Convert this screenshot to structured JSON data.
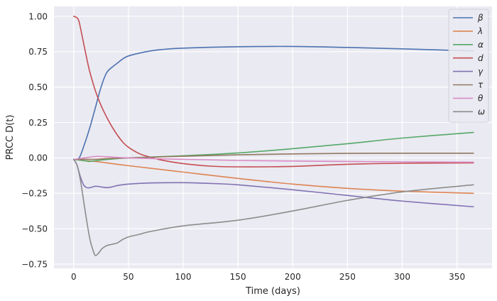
{
  "chart_data": {
    "type": "line",
    "title": "",
    "xlabel": "Time (days)",
    "ylabel": "PRCC D(t)",
    "xlim": [
      -18,
      382
    ],
    "ylim": [
      -0.78,
      1.07
    ],
    "xticks": [
      0,
      50,
      100,
      150,
      200,
      250,
      300,
      350
    ],
    "xtick_labels": [
      "0",
      "50",
      "100",
      "150",
      "200",
      "250",
      "300",
      "350"
    ],
    "yticks": [
      -0.75,
      -0.5,
      -0.25,
      0.0,
      0.25,
      0.5,
      0.75,
      1.0
    ],
    "ytick_labels": [
      "−0.75",
      "−0.50",
      "−0.25",
      "0.00",
      "0.25",
      "0.50",
      "0.75",
      "1.00"
    ],
    "grid": true,
    "legend_position": "top-right",
    "colors": {
      "plot_background": "#eaeaf2",
      "grid": "#ffffff",
      "legend_background": "#eaeaf2"
    },
    "series": [
      {
        "name": "β",
        "color": "#4c72b0",
        "points": [
          [
            0,
            -0.01
          ],
          [
            5,
            0.0
          ],
          [
            10,
            0.1
          ],
          [
            15,
            0.22
          ],
          [
            20,
            0.36
          ],
          [
            25,
            0.5
          ],
          [
            30,
            0.6
          ],
          [
            35,
            0.64
          ],
          [
            40,
            0.67
          ],
          [
            45,
            0.7
          ],
          [
            50,
            0.72
          ],
          [
            60,
            0.74
          ],
          [
            70,
            0.755
          ],
          [
            80,
            0.765
          ],
          [
            100,
            0.775
          ],
          [
            150,
            0.785
          ],
          [
            200,
            0.787
          ],
          [
            250,
            0.78
          ],
          [
            300,
            0.77
          ],
          [
            365,
            0.755
          ]
        ]
      },
      {
        "name": "λ",
        "color": "#dd8452",
        "points": [
          [
            0,
            -0.01
          ],
          [
            10,
            -0.02
          ],
          [
            20,
            -0.025
          ],
          [
            30,
            -0.035
          ],
          [
            50,
            -0.055
          ],
          [
            100,
            -0.1
          ],
          [
            150,
            -0.145
          ],
          [
            200,
            -0.185
          ],
          [
            250,
            -0.215
          ],
          [
            300,
            -0.235
          ],
          [
            365,
            -0.25
          ]
        ]
      },
      {
        "name": "α",
        "color": "#55a868",
        "points": [
          [
            0,
            -0.01
          ],
          [
            10,
            -0.02
          ],
          [
            15,
            -0.025
          ],
          [
            25,
            -0.015
          ],
          [
            40,
            -0.005
          ],
          [
            50,
            0.0
          ],
          [
            100,
            0.015
          ],
          [
            150,
            0.035
          ],
          [
            200,
            0.065
          ],
          [
            250,
            0.1
          ],
          [
            300,
            0.14
          ],
          [
            365,
            0.18
          ]
        ]
      },
      {
        "name": "d",
        "color": "#c44e52",
        "points": [
          [
            0,
            1.0
          ],
          [
            3,
            0.99
          ],
          [
            5,
            0.96
          ],
          [
            8,
            0.85
          ],
          [
            12,
            0.7
          ],
          [
            15,
            0.6
          ],
          [
            20,
            0.47
          ],
          [
            25,
            0.37
          ],
          [
            30,
            0.29
          ],
          [
            35,
            0.22
          ],
          [
            40,
            0.16
          ],
          [
            45,
            0.11
          ],
          [
            50,
            0.075
          ],
          [
            60,
            0.03
          ],
          [
            70,
            0.005
          ],
          [
            80,
            -0.015
          ],
          [
            100,
            -0.04
          ],
          [
            125,
            -0.058
          ],
          [
            150,
            -0.063
          ],
          [
            200,
            -0.06
          ],
          [
            250,
            -0.045
          ],
          [
            300,
            -0.038
          ],
          [
            365,
            -0.035
          ]
        ]
      },
      {
        "name": "γ",
        "color": "#8172b3",
        "points": [
          [
            0,
            -0.01
          ],
          [
            3,
            -0.05
          ],
          [
            6,
            -0.13
          ],
          [
            9,
            -0.19
          ],
          [
            12,
            -0.21
          ],
          [
            15,
            -0.21
          ],
          [
            20,
            -0.2
          ],
          [
            25,
            -0.205
          ],
          [
            30,
            -0.21
          ],
          [
            35,
            -0.205
          ],
          [
            40,
            -0.195
          ],
          [
            50,
            -0.185
          ],
          [
            70,
            -0.177
          ],
          [
            100,
            -0.175
          ],
          [
            130,
            -0.182
          ],
          [
            150,
            -0.19
          ],
          [
            200,
            -0.225
          ],
          [
            250,
            -0.265
          ],
          [
            300,
            -0.305
          ],
          [
            365,
            -0.345
          ]
        ]
      },
      {
        "name": "τ",
        "color": "#937860",
        "points": [
          [
            0,
            -0.01
          ],
          [
            10,
            -0.01
          ],
          [
            20,
            -0.01
          ],
          [
            30,
            -0.005
          ],
          [
            50,
            0.0
          ],
          [
            100,
            0.012
          ],
          [
            150,
            0.022
          ],
          [
            200,
            0.028
          ],
          [
            250,
            0.032
          ],
          [
            300,
            0.033
          ],
          [
            365,
            0.033
          ]
        ]
      },
      {
        "name": "θ",
        "color": "#da8bc3",
        "points": [
          [
            0,
            -0.01
          ],
          [
            10,
            0.0
          ],
          [
            20,
            0.01
          ],
          [
            30,
            0.008
          ],
          [
            50,
            0.0
          ],
          [
            100,
            -0.01
          ],
          [
            150,
            -0.018
          ],
          [
            200,
            -0.022
          ],
          [
            250,
            -0.025
          ],
          [
            300,
            -0.028
          ],
          [
            365,
            -0.03
          ]
        ]
      },
      {
        "name": "ω",
        "color": "#8c8c8c",
        "points": [
          [
            0,
            -0.01
          ],
          [
            3,
            -0.05
          ],
          [
            6,
            -0.15
          ],
          [
            9,
            -0.3
          ],
          [
            12,
            -0.45
          ],
          [
            15,
            -0.58
          ],
          [
            18,
            -0.66
          ],
          [
            20,
            -0.69
          ],
          [
            23,
            -0.67
          ],
          [
            26,
            -0.64
          ],
          [
            30,
            -0.62
          ],
          [
            35,
            -0.61
          ],
          [
            40,
            -0.6
          ],
          [
            45,
            -0.575
          ],
          [
            50,
            -0.558
          ],
          [
            60,
            -0.54
          ],
          [
            70,
            -0.52
          ],
          [
            100,
            -0.48
          ],
          [
            150,
            -0.44
          ],
          [
            200,
            -0.375
          ],
          [
            250,
            -0.3
          ],
          [
            300,
            -0.24
          ],
          [
            365,
            -0.19
          ]
        ]
      }
    ]
  }
}
